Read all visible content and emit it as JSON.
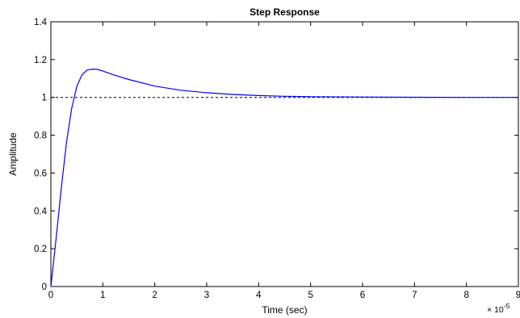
{
  "chart_data": {
    "type": "line",
    "title": "Step Response",
    "xlabel": "Time (sec)",
    "ylabel": "Amplitude",
    "x_multiplier_label": "× 10",
    "x_multiplier_exponent": "-5",
    "xlim": [
      0,
      9
    ],
    "ylim": [
      0,
      1.4
    ],
    "xticks": [
      0,
      1,
      2,
      3,
      4,
      5,
      6,
      7,
      8,
      9
    ],
    "yticks": [
      0,
      0.2,
      0.4,
      0.6,
      0.8,
      1,
      1.2,
      1.4
    ],
    "xtick_labels": [
      "0",
      "1",
      "2",
      "3",
      "4",
      "5",
      "6",
      "7",
      "8",
      "9"
    ],
    "ytick_labels": [
      "0",
      "0.2",
      "0.4",
      "0.6",
      "0.8",
      "1",
      "1.2",
      "1.4"
    ],
    "grid": false,
    "reference_line": {
      "y": 1,
      "style": "dashed",
      "color": "#000000"
    },
    "series": [
      {
        "color": "#0000ff",
        "x": [
          0,
          0.1,
          0.2,
          0.3,
          0.4,
          0.5,
          0.6,
          0.7,
          0.8,
          0.9,
          1.0,
          1.2,
          1.5,
          2.0,
          2.5,
          3.0,
          3.5,
          4.0,
          4.5,
          5.0,
          6.0,
          7.0,
          8.0,
          9.0
        ],
        "y": [
          0,
          0.25,
          0.52,
          0.76,
          0.94,
          1.06,
          1.12,
          1.145,
          1.15,
          1.148,
          1.14,
          1.12,
          1.095,
          1.06,
          1.038,
          1.025,
          1.016,
          1.01,
          1.006,
          1.004,
          1.002,
          1.001,
          1.0,
          1.0
        ]
      }
    ]
  }
}
